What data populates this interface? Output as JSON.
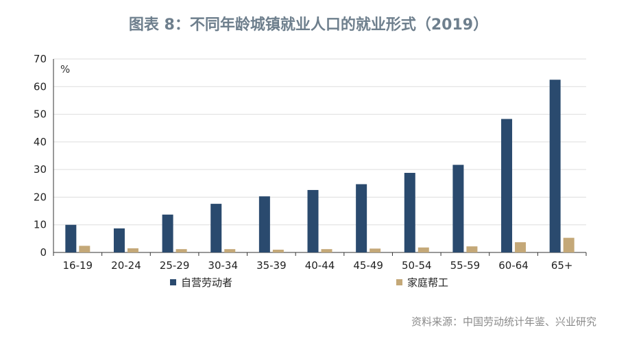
{
  "title": "图表 8：不同年龄城镇就业人口的就业形式（2019）",
  "source": "资料来源：中国劳动统计年鉴、兴业研究",
  "colors": {
    "series1": "#2a4a6e",
    "series2": "#c4a878",
    "grid": "#dddddd",
    "axis": "#333333",
    "title": "#6e7f8d",
    "source": "#8a8a8a"
  },
  "chart_data": {
    "type": "bar",
    "unit": "%",
    "categories": [
      "16-19",
      "20-24",
      "25-29",
      "30-34",
      "35-39",
      "40-44",
      "45-49",
      "50-54",
      "55-59",
      "60-64",
      "65+"
    ],
    "series": [
      {
        "name": "自营劳动者",
        "values": [
          10.0,
          8.7,
          13.7,
          17.6,
          20.3,
          22.6,
          24.7,
          28.8,
          31.7,
          48.3,
          62.5
        ]
      },
      {
        "name": "家庭帮工",
        "values": [
          2.4,
          1.5,
          1.2,
          1.2,
          1.0,
          1.2,
          1.4,
          1.8,
          2.2,
          3.7,
          5.3
        ]
      }
    ],
    "y_ticks": [
      "0",
      "10",
      "20",
      "30",
      "40",
      "50",
      "60",
      "70"
    ],
    "ylim": [
      0,
      70
    ],
    "grid": true,
    "legend_position": "bottom"
  }
}
